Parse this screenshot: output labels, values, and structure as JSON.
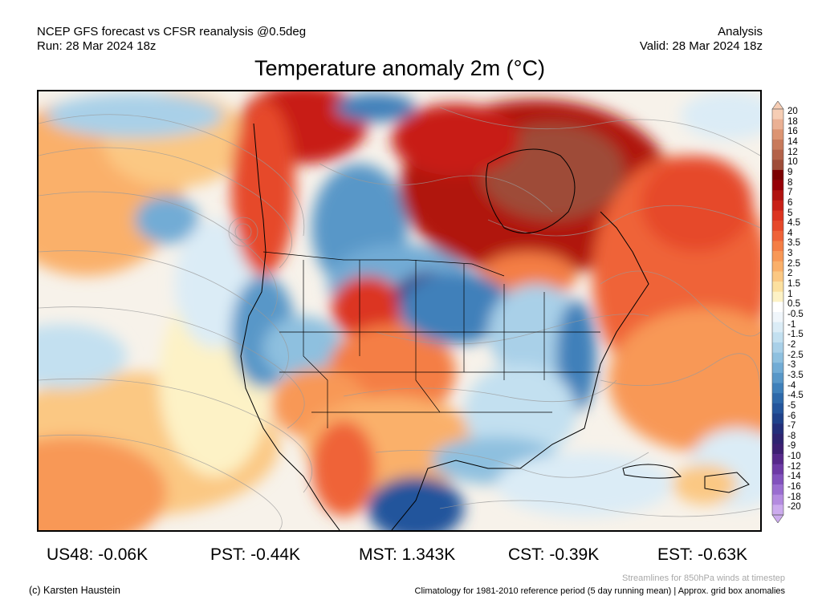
{
  "header": {
    "model_line": "NCEP GFS forecast vs CFSR reanalysis @0.5deg",
    "run_line": "Run: 28 Mar 2024 18z",
    "type_line": "Analysis",
    "valid_line": "Valid: 28 Mar 2024 18z"
  },
  "title": "Temperature anomaly 2m (°C)",
  "colorbar": {
    "labels": [
      "20",
      "18",
      "16",
      "14",
      "12",
      "10",
      "9",
      "8",
      "7",
      "6",
      "5",
      "4.5",
      "4",
      "3.5",
      "3",
      "2.5",
      "2",
      "1.5",
      "1",
      "0.5",
      "-0.5",
      "-1",
      "-1.5",
      "-2",
      "-2.5",
      "-3",
      "-3.5",
      "-4",
      "-4.5",
      "-5",
      "-6",
      "-7",
      "-8",
      "-9",
      "-10",
      "-12",
      "-14",
      "-16",
      "-18",
      "-20"
    ],
    "colors": [
      "#f6cdb4",
      "#eab093",
      "#dc9472",
      "#c87a5b",
      "#b36249",
      "#9e4c38",
      "#7b0000",
      "#960007",
      "#b0120f",
      "#c81f16",
      "#dc3420",
      "#e6492a",
      "#ef6338",
      "#f47e45",
      "#f89856",
      "#fab06a",
      "#fbc883",
      "#fce09f",
      "#fdf2c6",
      "#ffffff",
      "#f0f6fb",
      "#dbecf6",
      "#c3e0f0",
      "#a9d0e8",
      "#8ec0df",
      "#72acd5",
      "#5897c8",
      "#3f80ba",
      "#2e69aa",
      "#24559c",
      "#1f418a",
      "#232e7a",
      "#2e2370",
      "#3d1f72",
      "#56288a",
      "#6d3aa5",
      "#8252bd",
      "#9a6dd0",
      "#b48be0",
      "#ccabee"
    ]
  },
  "stats": [
    {
      "label": "US48: -0.06K"
    },
    {
      "label": "PST: -0.44K"
    },
    {
      "label": "MST: 1.343K"
    },
    {
      "label": "CST: -0.39K"
    },
    {
      "label": "EST: -0.63K"
    }
  ],
  "footer": {
    "streamline_note": "Streamlines for 850hPa winds at timestep",
    "copyright": "(c) Karsten Haustein",
    "climatology_note": "Climatology for 1981-2010 reference period (5 day running mean) | Approx. grid box anomalies"
  }
}
